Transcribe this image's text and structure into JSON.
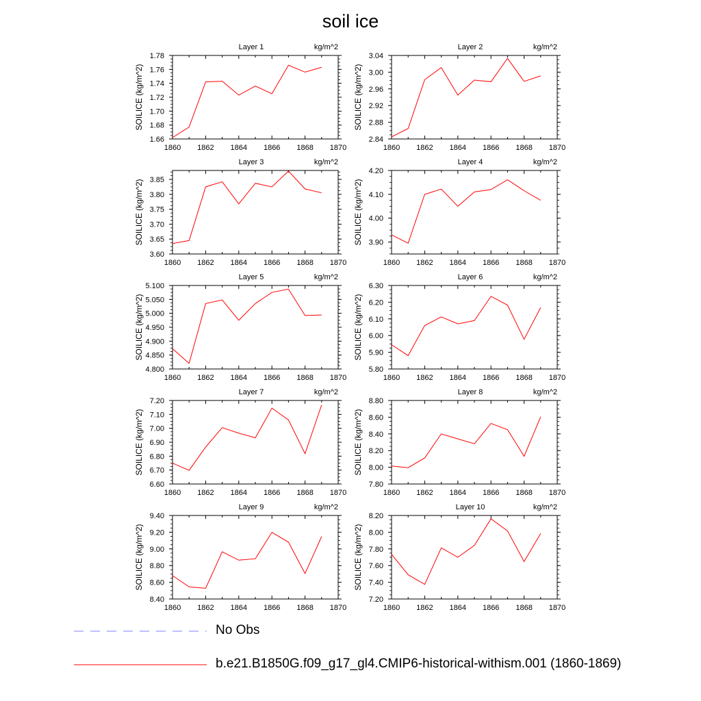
{
  "title": "soil ice",
  "chart_data": [
    {
      "type": "line",
      "layer_label": "Layer 1",
      "units": "kg/m^2",
      "ylabel": "SOILICE  (kg/m^2)",
      "x": [
        1860,
        1861,
        1862,
        1863,
        1864,
        1865,
        1866,
        1867,
        1868,
        1869
      ],
      "xlim": [
        1860,
        1870
      ],
      "xticks": [
        1860,
        1862,
        1864,
        1866,
        1868,
        1870
      ],
      "ylim": [
        1.66,
        1.78
      ],
      "yticks": [
        "1.66",
        "1.68",
        "1.70",
        "1.72",
        "1.74",
        "1.76",
        "1.78"
      ],
      "series": [
        {
          "values": [
            1.662,
            1.677,
            1.742,
            1.743,
            1.723,
            1.736,
            1.725,
            1.766,
            1.756,
            1.763
          ]
        }
      ]
    },
    {
      "type": "line",
      "layer_label": "Layer 2",
      "units": "kg/m^2",
      "ylabel": "SOILICE  (kg/m^2)",
      "x": [
        1860,
        1861,
        1862,
        1863,
        1864,
        1865,
        1866,
        1867,
        1868,
        1869
      ],
      "xlim": [
        1860,
        1870
      ],
      "xticks": [
        1860,
        1862,
        1864,
        1866,
        1868,
        1870
      ],
      "ylim": [
        2.84,
        3.04
      ],
      "yticks": [
        "2.84",
        "2.88",
        "2.92",
        "2.96",
        "3.00",
        "3.04"
      ],
      "series": [
        {
          "values": [
            2.845,
            2.865,
            2.982,
            3.011,
            2.945,
            2.981,
            2.977,
            3.033,
            2.978,
            2.991
          ]
        }
      ]
    },
    {
      "type": "line",
      "layer_label": "Layer 3",
      "units": "kg/m^2",
      "ylabel": "SOILICE  (kg/m^2)",
      "x": [
        1860,
        1861,
        1862,
        1863,
        1864,
        1865,
        1866,
        1867,
        1868,
        1869
      ],
      "xlim": [
        1860,
        1870
      ],
      "xticks": [
        1860,
        1862,
        1864,
        1866,
        1868,
        1870
      ],
      "ylim": [
        3.6,
        3.88
      ],
      "yticks": [
        "3.60",
        "3.65",
        "3.70",
        "3.75",
        "3.80",
        "3.85"
      ],
      "series": [
        {
          "values": [
            3.635,
            3.645,
            3.825,
            3.842,
            3.768,
            3.837,
            3.825,
            3.878,
            3.818,
            3.805
          ]
        }
      ]
    },
    {
      "type": "line",
      "layer_label": "Layer 4",
      "units": "kg/m^2",
      "ylabel": "SOILICE  (kg/m^2)",
      "x": [
        1860,
        1861,
        1862,
        1863,
        1864,
        1865,
        1866,
        1867,
        1868,
        1869
      ],
      "xlim": [
        1860,
        1870
      ],
      "xticks": [
        1860,
        1862,
        1864,
        1866,
        1868,
        1870
      ],
      "ylim": [
        3.85,
        4.2
      ],
      "yticks": [
        "3.90",
        "4.00",
        "4.10",
        "4.20"
      ],
      "series": [
        {
          "values": [
            3.93,
            3.895,
            4.1,
            4.122,
            4.05,
            4.11,
            4.12,
            4.161,
            4.115,
            4.075
          ]
        }
      ]
    },
    {
      "type": "line",
      "layer_label": "Layer 5",
      "units": "kg/m^2",
      "ylabel": "SOILICE  (kg/m^2)",
      "x": [
        1860,
        1861,
        1862,
        1863,
        1864,
        1865,
        1866,
        1867,
        1868,
        1869
      ],
      "xlim": [
        1860,
        1870
      ],
      "xticks": [
        1860,
        1862,
        1864,
        1866,
        1868,
        1870
      ],
      "ylim": [
        4.8,
        5.1
      ],
      "yticks": [
        "4.800",
        "4.850",
        "4.900",
        "4.950",
        "5.000",
        "5.050",
        "5.100"
      ],
      "series": [
        {
          "values": [
            4.873,
            4.82,
            5.035,
            5.048,
            4.975,
            5.035,
            5.075,
            5.087,
            4.992,
            4.994
          ]
        }
      ]
    },
    {
      "type": "line",
      "layer_label": "Layer 6",
      "units": "kg/m^2",
      "ylabel": "SOILICE  (kg/m^2)",
      "x": [
        1860,
        1861,
        1862,
        1863,
        1864,
        1865,
        1866,
        1867,
        1868,
        1869
      ],
      "xlim": [
        1860,
        1870
      ],
      "xticks": [
        1860,
        1862,
        1864,
        1866,
        1868,
        1870
      ],
      "ylim": [
        5.8,
        6.3
      ],
      "yticks": [
        "5.80",
        "5.90",
        "6.00",
        "6.10",
        "6.20",
        "6.30"
      ],
      "series": [
        {
          "values": [
            5.945,
            5.88,
            6.06,
            6.112,
            6.07,
            6.09,
            6.235,
            6.182,
            5.978,
            6.168
          ]
        }
      ]
    },
    {
      "type": "line",
      "layer_label": "Layer 7",
      "units": "kg/m^2",
      "ylabel": "SOILICE  (kg/m^2)",
      "x": [
        1860,
        1861,
        1862,
        1863,
        1864,
        1865,
        1866,
        1867,
        1868,
        1869
      ],
      "xlim": [
        1860,
        1870
      ],
      "xticks": [
        1860,
        1862,
        1864,
        1866,
        1868,
        1870
      ],
      "ylim": [
        6.6,
        7.2
      ],
      "yticks": [
        "6.60",
        "6.70",
        "6.80",
        "6.90",
        "7.00",
        "7.10",
        "7.20"
      ],
      "series": [
        {
          "values": [
            6.75,
            6.698,
            6.865,
            7.005,
            6.965,
            6.932,
            7.145,
            7.06,
            6.818,
            7.168
          ]
        }
      ]
    },
    {
      "type": "line",
      "layer_label": "Layer 8",
      "units": "kg/m^2",
      "ylabel": "SOILICE  (kg/m^2)",
      "x": [
        1860,
        1861,
        1862,
        1863,
        1864,
        1865,
        1866,
        1867,
        1868,
        1869
      ],
      "xlim": [
        1860,
        1870
      ],
      "xticks": [
        1860,
        1862,
        1864,
        1866,
        1868,
        1870
      ],
      "ylim": [
        7.8,
        8.8
      ],
      "yticks": [
        "7.80",
        "8.00",
        "8.20",
        "8.40",
        "8.60",
        "8.80"
      ],
      "series": [
        {
          "values": [
            8.015,
            7.995,
            8.112,
            8.4,
            8.34,
            8.282,
            8.525,
            8.45,
            8.132,
            8.605
          ]
        }
      ]
    },
    {
      "type": "line",
      "layer_label": "Layer 9",
      "units": "kg/m^2",
      "ylabel": "SOILICE  (kg/m^2)",
      "x": [
        1860,
        1861,
        1862,
        1863,
        1864,
        1865,
        1866,
        1867,
        1868,
        1869
      ],
      "xlim": [
        1860,
        1870
      ],
      "xticks": [
        1860,
        1862,
        1864,
        1866,
        1868,
        1870
      ],
      "ylim": [
        8.4,
        9.4
      ],
      "yticks": [
        "8.40",
        "8.60",
        "8.80",
        "9.00",
        "9.20",
        "9.40"
      ],
      "series": [
        {
          "values": [
            8.68,
            8.545,
            8.528,
            8.965,
            8.865,
            8.882,
            9.198,
            9.08,
            8.705,
            9.148
          ]
        }
      ]
    },
    {
      "type": "line",
      "layer_label": "Layer 10",
      "units": "kg/m^2",
      "ylabel": "SOILICE  (kg/m^2)",
      "x": [
        1860,
        1861,
        1862,
        1863,
        1864,
        1865,
        1866,
        1867,
        1868,
        1869
      ],
      "xlim": [
        1860,
        1870
      ],
      "xticks": [
        1860,
        1862,
        1864,
        1866,
        1868,
        1870
      ],
      "ylim": [
        7.2,
        8.2
      ],
      "yticks": [
        "7.20",
        "7.40",
        "7.60",
        "7.80",
        "8.00",
        "8.20"
      ],
      "series": [
        {
          "values": [
            7.735,
            7.49,
            7.375,
            7.812,
            7.7,
            7.842,
            8.16,
            8.015,
            7.648,
            7.985
          ]
        }
      ]
    }
  ],
  "legend": [
    {
      "label": "No Obs",
      "color": "#8080ff",
      "style": "dashed"
    },
    {
      "label": "b.e21.B1850G.f09_g17_gl4.CMIP6-historical-withism.001 (1860-1869)",
      "color": "#ff0000",
      "style": "solid"
    }
  ]
}
